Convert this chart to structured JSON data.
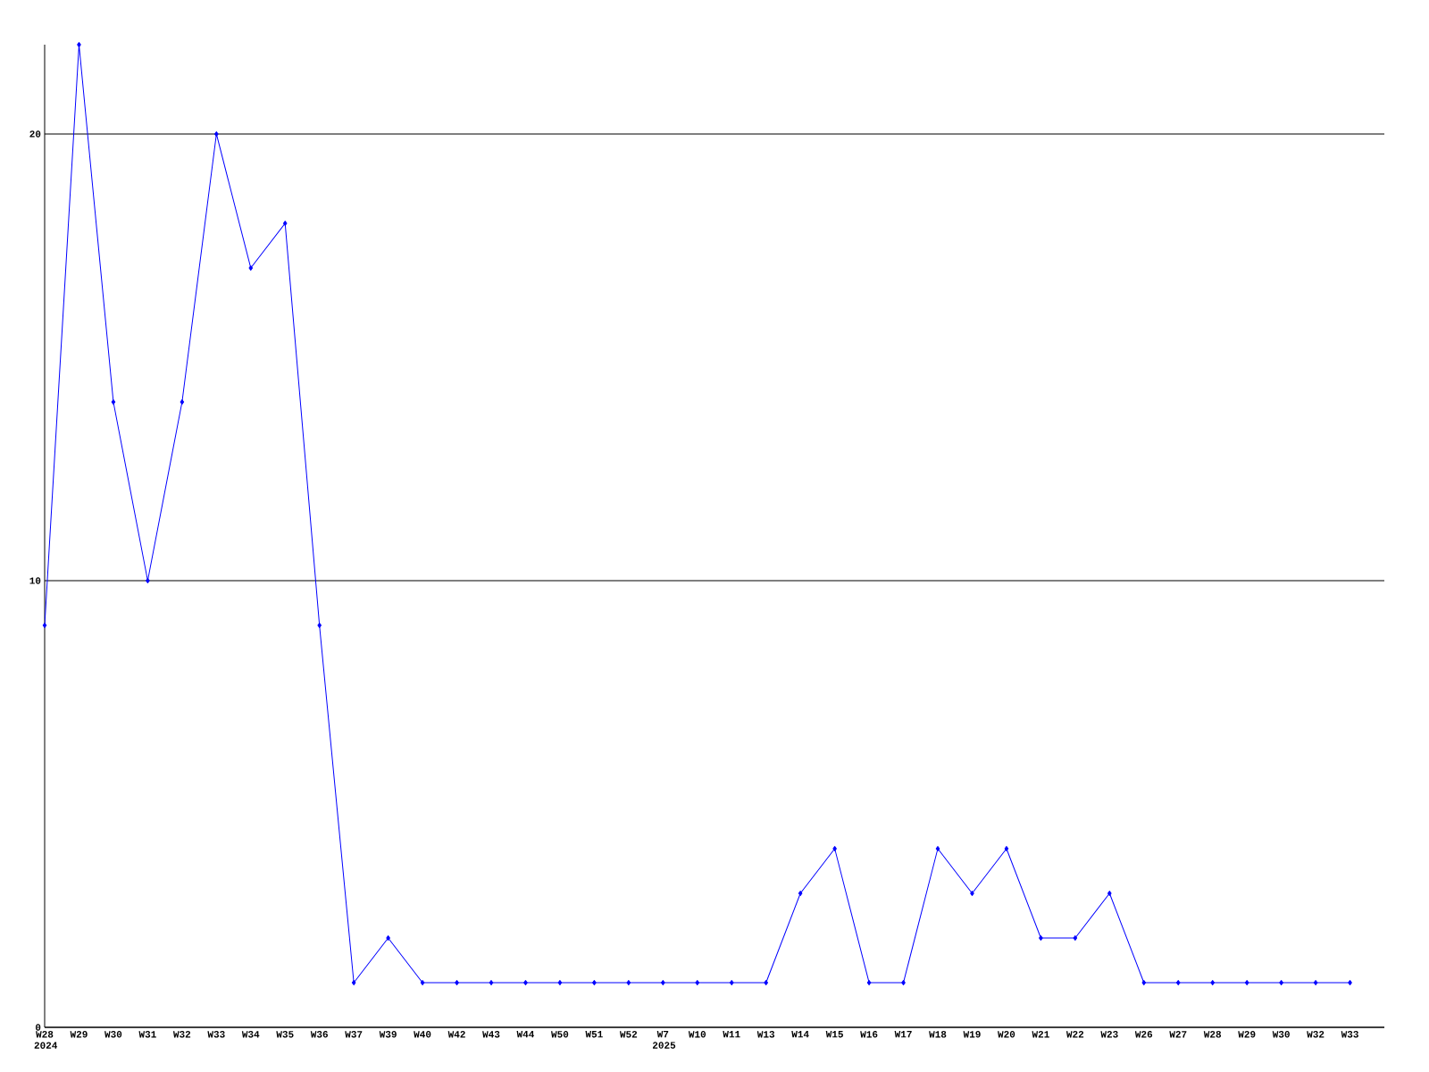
{
  "chart_data": {
    "type": "line",
    "categories": [
      "W28 2024",
      "W29",
      "W30",
      "W31",
      "W32",
      "W33",
      "W34",
      "W35",
      "W36",
      "W37",
      "W39",
      "W40",
      "W42",
      "W43",
      "W44",
      "W50",
      "W51",
      "W52",
      "W7 2025",
      "W10",
      "W11",
      "W13",
      "W14",
      "W15",
      "W16",
      "W17",
      "W18",
      "W19",
      "W20",
      "W21",
      "W22",
      "W23",
      "W26",
      "W27",
      "W28",
      "W29",
      "W30",
      "W32",
      "W33"
    ],
    "series": [
      {
        "color": "#0000ff",
        "values": [
          9,
          22,
          14,
          10,
          14,
          20,
          17,
          18,
          9,
          1,
          2,
          1,
          1,
          1,
          1,
          1,
          1,
          1,
          1,
          1,
          1,
          1,
          3,
          4,
          1,
          1,
          4,
          3,
          4,
          2,
          2,
          3,
          1,
          1,
          1,
          1,
          1,
          1,
          1
        ]
      }
    ],
    "ylim": [
      0,
      22
    ],
    "yticks": [
      0,
      10,
      20
    ],
    "grid": "y",
    "marker": "diamond",
    "line_style": "solid"
  }
}
